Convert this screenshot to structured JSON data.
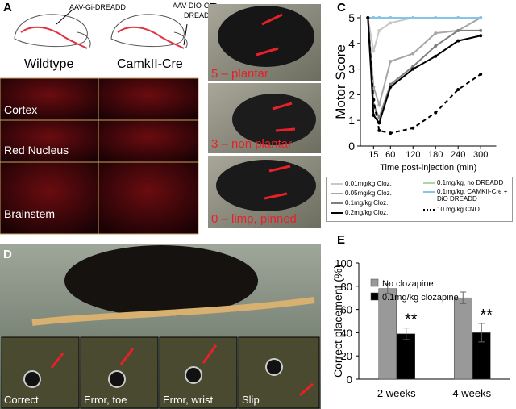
{
  "panel_a": {
    "label": "A",
    "vector_1": "AAV-Gi-DREADD",
    "vector_2_lines": [
      "AAV-DIO-Gi-",
      "DREADD"
    ],
    "columns": [
      "Wildtype",
      "CamkII-Cre"
    ],
    "rows": [
      "Cortex",
      "Red Nucleus",
      "Brainstem"
    ]
  },
  "panel_b": {
    "label": "B",
    "scores": [
      "5 – plantar",
      "3 – non plantar",
      "0 – limp, pinned"
    ]
  },
  "panel_c": {
    "label": "C"
  },
  "panel_d": {
    "label": "D",
    "insets": [
      "Correct",
      "Error, toe",
      "Error, wrist",
      "Slip"
    ]
  },
  "panel_e": {
    "label": "E"
  },
  "chart_data": [
    {
      "type": "line",
      "ylabel": "Motor Score",
      "xlabel": "Time post-injection (min)",
      "x": [
        0,
        15,
        30,
        60,
        120,
        180,
        240,
        300
      ],
      "xlim": [
        -20,
        320
      ],
      "xticks": [
        15,
        60,
        120,
        180,
        240,
        300
      ],
      "ylim": [
        0,
        5
      ],
      "yticks": [
        0,
        1,
        2,
        3,
        4,
        5
      ],
      "series": [
        {
          "name": "0.01mg/kg Cloz.",
          "color": "#c8c8c8",
          "dash": false,
          "values": [
            5,
            3.7,
            4.5,
            4.8,
            5,
            5,
            5,
            5
          ]
        },
        {
          "name": "0.05mg/kg Cloz.",
          "color": "#a6a6a6",
          "dash": false,
          "values": [
            5,
            2.3,
            1.6,
            3.3,
            3.6,
            4.4,
            4.5,
            5
          ]
        },
        {
          "name": "0.1mg/kg Cloz.",
          "color": "#7f7f7f",
          "dash": false,
          "values": [
            5,
            1.6,
            1.1,
            2.4,
            3.1,
            3.9,
            4.5,
            4.5
          ]
        },
        {
          "name": "0.2mg/kg Cloz.",
          "color": "#000000",
          "dash": false,
          "values": [
            5,
            1.2,
            0.9,
            2.3,
            3,
            3.5,
            4.1,
            4.3
          ]
        },
        {
          "name": "0.1mg/kg, no DREADD",
          "color": "#a9d9a0",
          "dash": false,
          "values": [
            5,
            5,
            5,
            5,
            5,
            5,
            5,
            5
          ]
        },
        {
          "name": "0.1mg/kg, CAMKII-Cre + DiO DREADD",
          "color": "#86c4e8",
          "dash": false,
          "values": [
            5,
            5,
            5,
            5,
            5,
            5,
            5,
            5
          ]
        },
        {
          "name": "10 mg/kg CNO",
          "color": "#000000",
          "dash": true,
          "values": [
            5,
            1.8,
            0.6,
            0.5,
            0.7,
            1.3,
            2.2,
            2.8
          ]
        }
      ]
    },
    {
      "type": "bar",
      "ylabel": "Correct placement (%)",
      "categories": [
        "2 weeks",
        "4 weeks"
      ],
      "ylim": [
        0,
        100
      ],
      "yticks": [
        0,
        20,
        40,
        60,
        80,
        100
      ],
      "series": [
        {
          "name": "No clozapine",
          "color": "#999999",
          "values": [
            78,
            70
          ],
          "errors": [
            4,
            5
          ]
        },
        {
          "name": "0.1mg/kg clozapine",
          "color": "#000000",
          "values": [
            39,
            40
          ],
          "errors": [
            5,
            8
          ],
          "significance": [
            "**",
            "**"
          ]
        }
      ]
    }
  ]
}
